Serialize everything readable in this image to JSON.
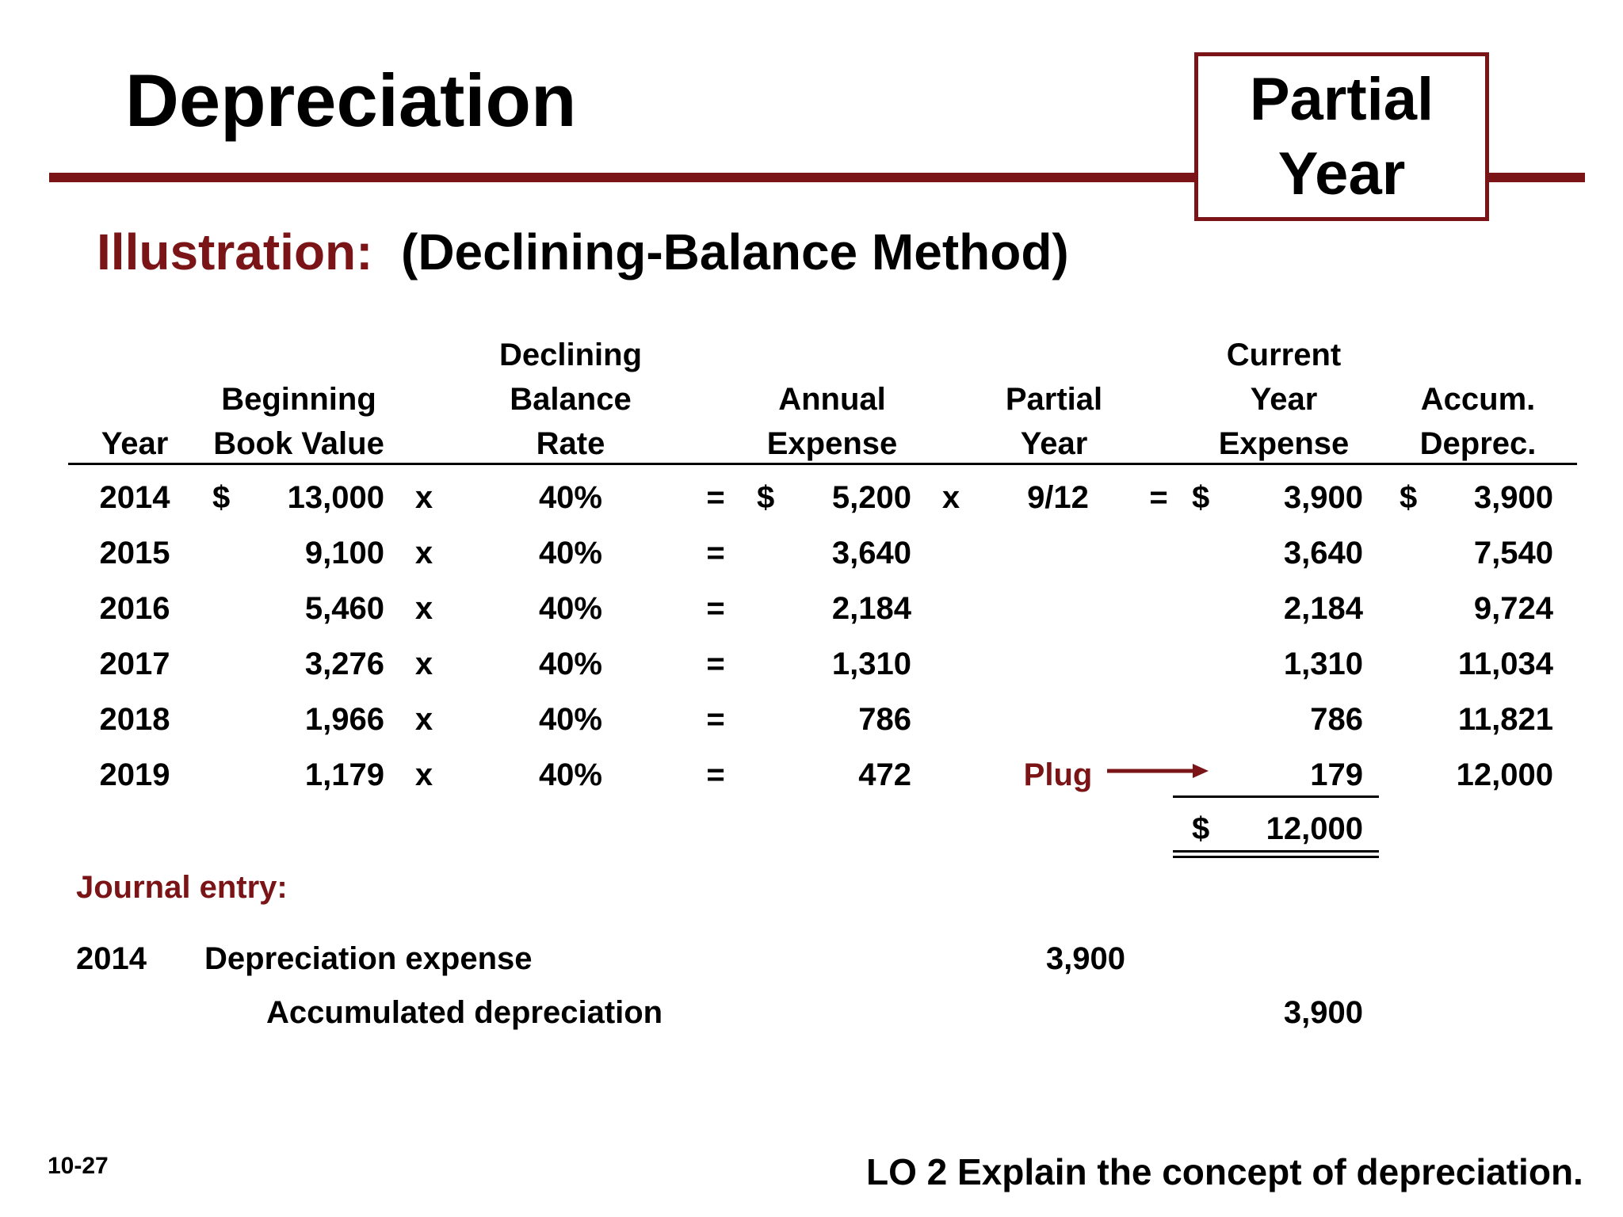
{
  "title": "Depreciation",
  "tag": {
    "line1": "Partial",
    "line2": "Year"
  },
  "subtitle": {
    "label": "Illustration:",
    "method": "(Declining-Balance Method)"
  },
  "table": {
    "headers": {
      "year": [
        "",
        "",
        "Year"
      ],
      "bbv": [
        "",
        "Beginning",
        "Book Value"
      ],
      "rate": [
        "Declining",
        "Balance",
        "Rate"
      ],
      "annual": [
        "",
        "Annual",
        "Expense"
      ],
      "partial": [
        "",
        "Partial",
        "Year"
      ],
      "current": [
        "Current",
        "Year",
        "Expense"
      ],
      "accum": [
        "",
        "Accum.",
        "Deprec."
      ]
    },
    "rows": [
      {
        "year": "2014",
        "bbv_cur": "$",
        "bbv": "13,000",
        "x1": "x",
        "rate": "40%",
        "eq1": "=",
        "ann_cur": "$",
        "annual": "5,200",
        "x2": "x",
        "partial": "9/12",
        "eq2": "=",
        "cur_cur": "$",
        "current": "3,900",
        "acc_cur": "$",
        "accum": "3,900"
      },
      {
        "year": "2015",
        "bbv_cur": "",
        "bbv": "9,100",
        "x1": "x",
        "rate": "40%",
        "eq1": "=",
        "ann_cur": "",
        "annual": "3,640",
        "x2": "",
        "partial": "",
        "eq2": "",
        "cur_cur": "",
        "current": "3,640",
        "acc_cur": "",
        "accum": "7,540"
      },
      {
        "year": "2016",
        "bbv_cur": "",
        "bbv": "5,460",
        "x1": "x",
        "rate": "40%",
        "eq1": "=",
        "ann_cur": "",
        "annual": "2,184",
        "x2": "",
        "partial": "",
        "eq2": "",
        "cur_cur": "",
        "current": "2,184",
        "acc_cur": "",
        "accum": "9,724"
      },
      {
        "year": "2017",
        "bbv_cur": "",
        "bbv": "3,276",
        "x1": "x",
        "rate": "40%",
        "eq1": "=",
        "ann_cur": "",
        "annual": "1,310",
        "x2": "",
        "partial": "",
        "eq2": "",
        "cur_cur": "",
        "current": "1,310",
        "acc_cur": "",
        "accum": "11,034"
      },
      {
        "year": "2018",
        "bbv_cur": "",
        "bbv": "1,966",
        "x1": "x",
        "rate": "40%",
        "eq1": "=",
        "ann_cur": "",
        "annual": "786",
        "x2": "",
        "partial": "",
        "eq2": "",
        "cur_cur": "",
        "current": "786",
        "acc_cur": "",
        "accum": "11,821"
      },
      {
        "year": "2019",
        "bbv_cur": "",
        "bbv": "1,179",
        "x1": "x",
        "rate": "40%",
        "eq1": "=",
        "ann_cur": "",
        "annual": "472",
        "x2": "",
        "partial": "Plug",
        "eq2": "",
        "cur_cur": "",
        "current": "179",
        "acc_cur": "",
        "accum": "12,000"
      }
    ],
    "total": {
      "currency": "$",
      "value": "12,000"
    }
  },
  "journal": {
    "heading": "Journal entry:",
    "year": "2014",
    "debit_account": "Depreciation expense",
    "debit_amount": "3,900",
    "credit_account": "Accumulated depreciation",
    "credit_amount": "3,900"
  },
  "footer": {
    "slide_number": "10-27",
    "objective": "LO 2  Explain the concept of depreciation."
  },
  "colors": {
    "accent": "#7a1416",
    "text": "#000000",
    "background": "#ffffff"
  }
}
